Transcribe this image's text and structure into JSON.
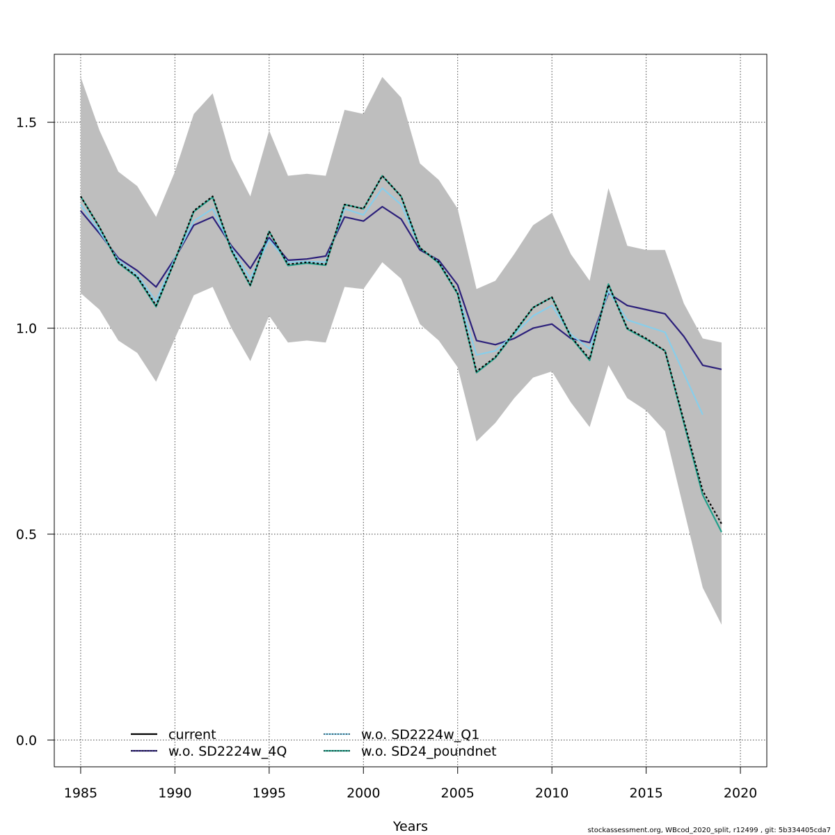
{
  "chart_data": {
    "type": "line",
    "title": "",
    "xlabel": "Years",
    "ylabel": "",
    "xlim": [
      1983.6,
      2021.4
    ],
    "ylim": [
      -0.065,
      1.665
    ],
    "x_ticks": [
      1985,
      1990,
      1995,
      2000,
      2005,
      2010,
      2015,
      2020
    ],
    "y_ticks": [
      0.0,
      0.5,
      1.0,
      1.5
    ],
    "grid": true,
    "legend_position": "bottom-left",
    "footer": "stockassessment.org, WBcod_2020_split, r12499 , git: 5b334405cda7",
    "band": {
      "x": [
        1985,
        1986,
        1987,
        1988,
        1989,
        1990,
        1991,
        1992,
        1993,
        1994,
        1995,
        1996,
        1997,
        1998,
        1999,
        2000,
        2001,
        2002,
        2003,
        2004,
        2005,
        2006,
        2007,
        2008,
        2009,
        2010,
        2011,
        2012,
        2013,
        2014,
        2015,
        2016,
        2017,
        2018,
        2019
      ],
      "upper": [
        1.61,
        1.48,
        1.38,
        1.345,
        1.27,
        1.38,
        1.52,
        1.57,
        1.41,
        1.32,
        1.48,
        1.37,
        1.375,
        1.37,
        1.53,
        1.52,
        1.61,
        1.56,
        1.4,
        1.36,
        1.29,
        1.095,
        1.115,
        1.18,
        1.25,
        1.28,
        1.18,
        1.115,
        1.34,
        1.2,
        1.19,
        1.19,
        1.06,
        0.975,
        0.965
      ],
      "lower": [
        1.085,
        1.045,
        0.97,
        0.94,
        0.87,
        0.975,
        1.08,
        1.1,
        1.0,
        0.92,
        1.03,
        0.965,
        0.97,
        0.965,
        1.1,
        1.095,
        1.16,
        1.12,
        1.01,
        0.97,
        0.905,
        0.725,
        0.77,
        0.83,
        0.88,
        0.895,
        0.82,
        0.76,
        0.91,
        0.83,
        0.8,
        0.75,
        0.56,
        0.37,
        0.28
      ],
      "color": "#bebebe"
    },
    "series": [
      {
        "name": "current",
        "color": "#000000",
        "dash": "",
        "width": 2.2,
        "x": [
          1985,
          1986,
          1987,
          1988,
          1989,
          1990,
          1991,
          1992,
          1993,
          1994,
          1995,
          1996,
          1997,
          1998,
          1999,
          2000,
          2001,
          2002,
          2003,
          2004,
          2005,
          2006,
          2007,
          2008,
          2009,
          2010,
          2011,
          2012,
          2013,
          2014,
          2015,
          2016,
          2017,
          2018,
          2019
        ],
        "values": [
          1.32,
          1.245,
          1.16,
          1.125,
          1.055,
          1.165,
          1.285,
          1.32,
          1.19,
          1.105,
          1.235,
          1.155,
          1.16,
          1.155,
          1.3,
          1.29,
          1.37,
          1.32,
          1.195,
          1.16,
          1.085,
          0.895,
          0.93,
          0.99,
          1.05,
          1.075,
          0.98,
          0.925,
          1.105,
          1.0,
          0.975,
          0.945,
          0.775,
          0.605,
          0.525
        ]
      },
      {
        "name": "w.o. SD2224w_4Q",
        "color": "#2b1f7a",
        "dash": "",
        "width": 2.2,
        "x": [
          1985,
          1986,
          1987,
          1988,
          1989,
          1990,
          1991,
          1992,
          1993,
          1994,
          1995,
          1996,
          1997,
          1998,
          1999,
          2000,
          2001,
          2002,
          2003,
          2004,
          2005,
          2006,
          2007,
          2008,
          2009,
          2010,
          2011,
          2012,
          2013,
          2014,
          2015,
          2016,
          2017,
          2018,
          2019
        ],
        "values": [
          1.285,
          1.23,
          1.17,
          1.14,
          1.1,
          1.17,
          1.25,
          1.27,
          1.2,
          1.145,
          1.22,
          1.165,
          1.168,
          1.175,
          1.27,
          1.26,
          1.295,
          1.265,
          1.19,
          1.165,
          1.105,
          0.97,
          0.96,
          0.975,
          1.0,
          1.01,
          0.975,
          0.965,
          1.085,
          1.055,
          1.045,
          1.035,
          0.98,
          0.91,
          0.9
        ]
      },
      {
        "name": "w.o. SD2224w_Q1",
        "color": "#87ceeb",
        "dash": "",
        "width": 2.2,
        "x": [
          1985,
          1986,
          1987,
          1988,
          1989,
          1990,
          1991,
          1992,
          1993,
          1994,
          1995,
          1996,
          1997,
          1998,
          1999,
          2000,
          2001,
          2002,
          2003,
          2004,
          2005,
          2006,
          2007,
          2008,
          2009,
          2010,
          2011,
          2012,
          2013,
          2014,
          2015,
          2016,
          2017,
          2018
        ],
        "values": [
          1.3,
          1.235,
          1.165,
          1.13,
          1.065,
          1.17,
          1.26,
          1.29,
          1.195,
          1.12,
          1.215,
          1.16,
          1.162,
          1.16,
          1.29,
          1.275,
          1.34,
          1.3,
          1.195,
          1.16,
          1.085,
          0.935,
          0.945,
          0.985,
          1.03,
          1.055,
          0.985,
          0.95,
          1.09,
          1.02,
          1.005,
          0.99,
          0.89,
          0.79
        ]
      },
      {
        "name": "w.o. SD24_poundnet",
        "color": "#20a08a",
        "dash": "",
        "width": 2.2,
        "x": [
          1985,
          1986,
          1987,
          1988,
          1989,
          1990,
          1991,
          1992,
          1993,
          1994,
          1995,
          1996,
          1997,
          1998,
          1999,
          2000,
          2001,
          2002,
          2003,
          2004,
          2005,
          2006,
          2007,
          2008,
          2009,
          2010,
          2011,
          2012,
          2013,
          2014,
          2015,
          2016,
          2017,
          2018,
          2019
        ],
        "values": [
          1.32,
          1.245,
          1.158,
          1.123,
          1.052,
          1.165,
          1.283,
          1.318,
          1.188,
          1.103,
          1.235,
          1.152,
          1.158,
          1.153,
          1.3,
          1.29,
          1.37,
          1.32,
          1.195,
          1.158,
          1.083,
          0.892,
          0.928,
          0.988,
          1.05,
          1.075,
          0.978,
          0.922,
          1.107,
          0.998,
          0.973,
          0.945,
          0.77,
          0.595,
          0.505
        ]
      }
    ]
  }
}
